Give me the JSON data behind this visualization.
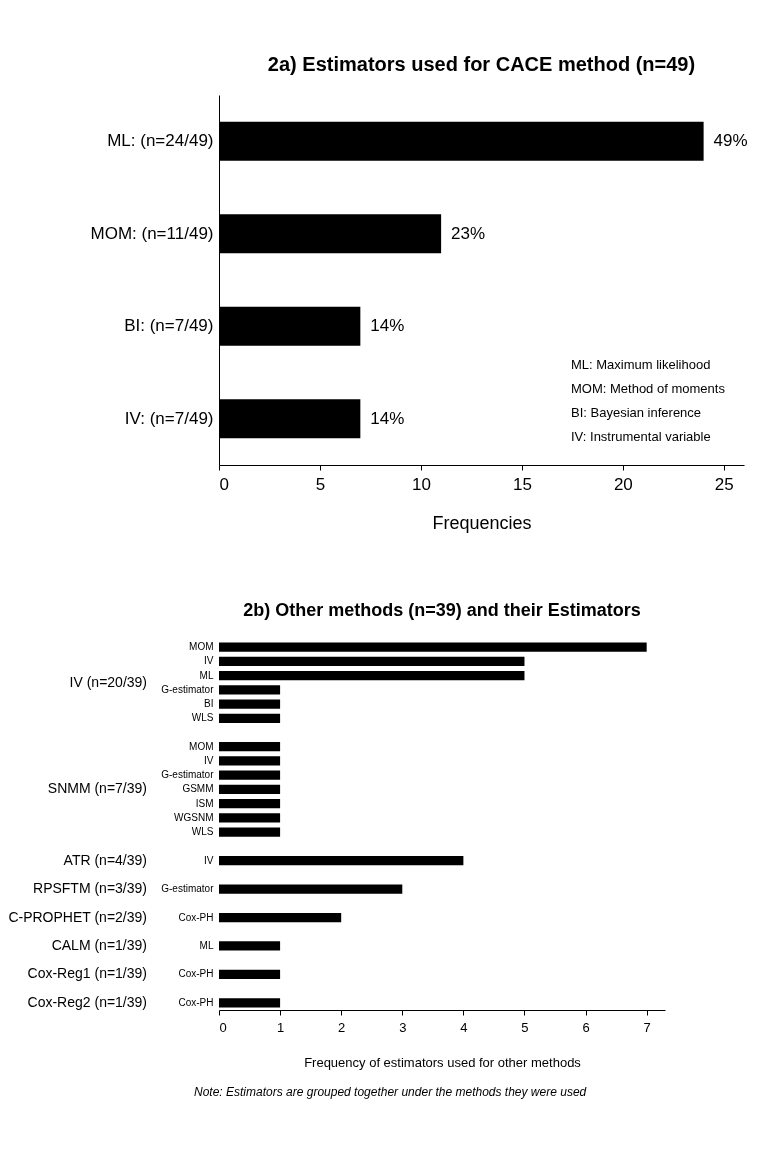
{
  "chart_data": [
    {
      "type": "bar",
      "orientation": "horizontal",
      "title": "2a) Estimators used for CACE method (n=49)",
      "xlabel": "Frequencies",
      "categories": [
        "ML: (n=24/49)",
        "MOM: (n=11/49)",
        "BI: (n=7/49)",
        "IV: (n=7/49)"
      ],
      "values": [
        24,
        11,
        7,
        7
      ],
      "color": "#000000",
      "xlim": [
        0,
        26
      ],
      "xticks": [
        0,
        5,
        10,
        15,
        20,
        25
      ],
      "annotations": [
        {
          "text": "49%",
          "x": 24,
          "y": "ML: (n=24/49)"
        },
        {
          "text": "23%",
          "x": 11,
          "y": "MOM: (n=11/49)"
        },
        {
          "text": "14%",
          "x": 7,
          "y": "BI: (n=7/49)"
        },
        {
          "text": "14%",
          "x": 7,
          "y": "IV: (n=7/49)"
        },
        "ML: Maximum likelihood",
        "MOM: Method of moments",
        "BI: Bayesian inference",
        "IV: Instrumental variable"
      ]
    },
    {
      "type": "bar",
      "orientation": "horizontal",
      "title": "2b) Other methods (n=39) and their Estimators",
      "xlabel": "Frequency of estimators used for other methods",
      "categories": [
        "MOM",
        "IV",
        "ML",
        "G-estimator",
        "BI",
        "WLS",
        null,
        "MOM",
        "IV",
        "G-estimator",
        "GSMM",
        "ISM",
        "WGSNM",
        "WLS",
        null,
        "IV",
        null,
        "G-estimator",
        null,
        "Cox-PH",
        null,
        "ML",
        null,
        "Cox-PH",
        null,
        "Cox-PH"
      ],
      "values": [
        7,
        5,
        5,
        1,
        1,
        1,
        null,
        1,
        1,
        1,
        1,
        1,
        1,
        1,
        null,
        4,
        null,
        3,
        null,
        2,
        null,
        1,
        null,
        1,
        null,
        1
      ],
      "color": "#000000",
      "xlim": [
        0,
        7.3
      ],
      "xticks": [
        0,
        1,
        2,
        3,
        4,
        5,
        6,
        7
      ],
      "annotations": [
        "IV (n=20/39)",
        "SNMM (n=7/39)",
        "ATR (n=4/39)",
        "RPSFTM (n=3/39)",
        "C-PROPHET (n=2/39)",
        "CALM (n=1/39)",
        "Cox-Reg1 (n=1/39)",
        "Cox-Reg2 (n=1/39)",
        "Note: Estimators are grouped together under the methods they were used"
      ]
    }
  ]
}
